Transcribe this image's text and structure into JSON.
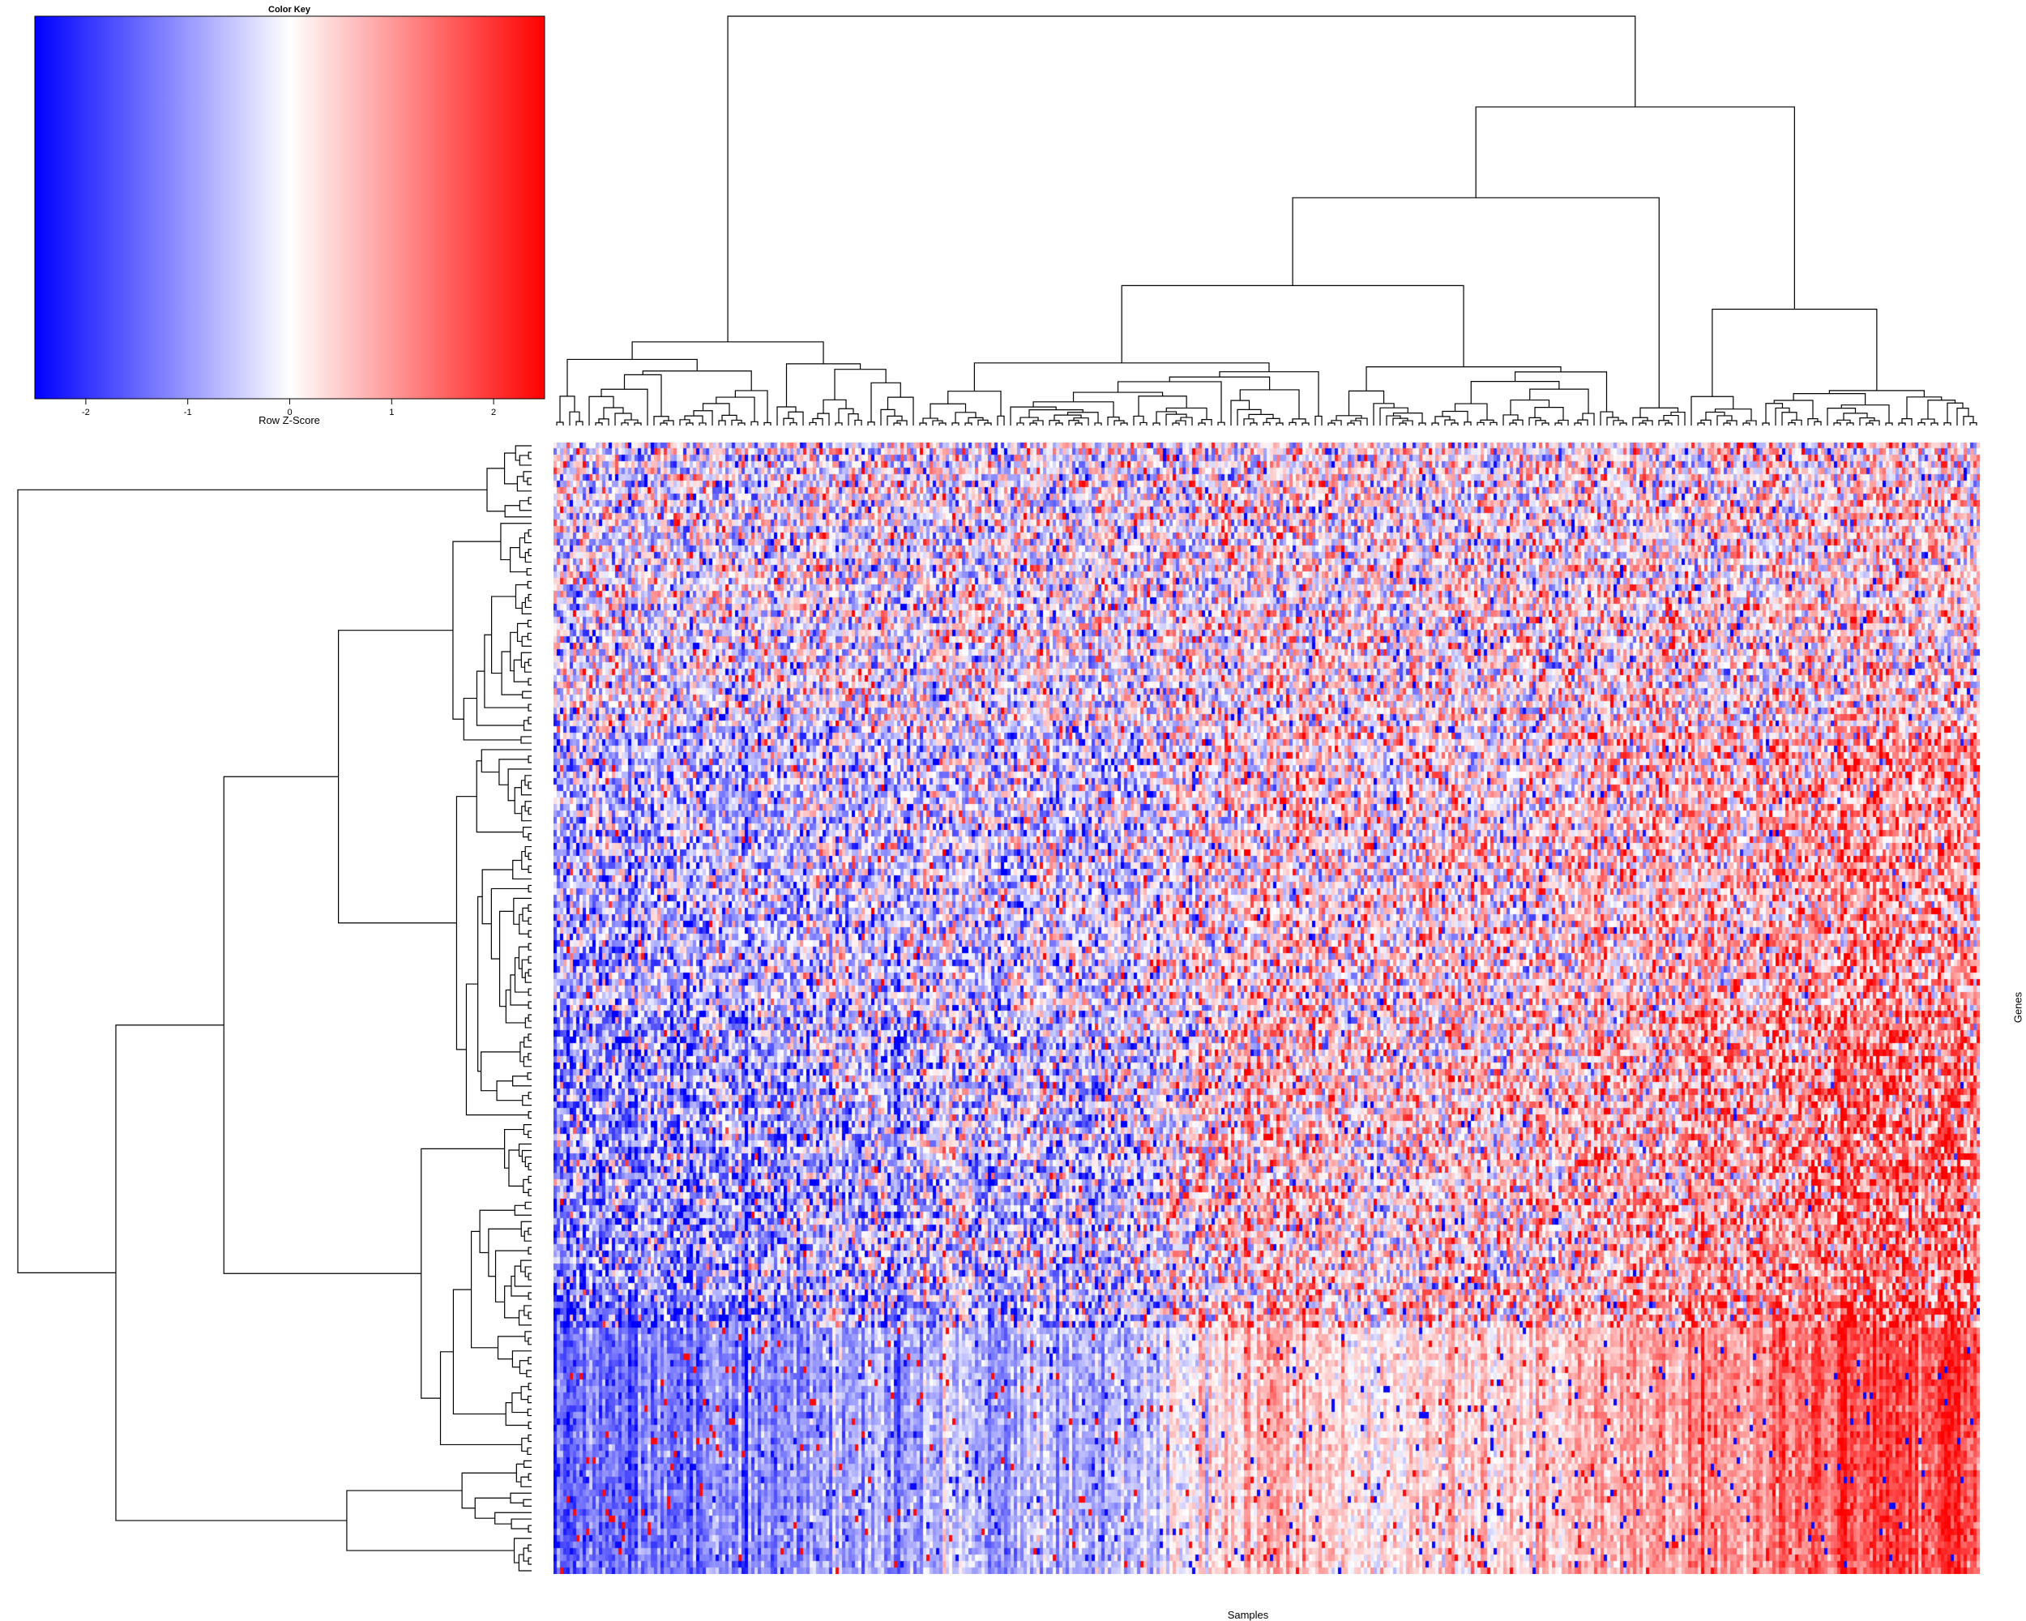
{
  "chart_data": {
    "type": "heatmap",
    "title": "",
    "xlabel": "Samples",
    "ylabel": "Genes",
    "color_key": {
      "title": "Color Key",
      "label": "Row Z-Score",
      "ticks": [
        -2,
        -1,
        0,
        1,
        2
      ],
      "range": [
        -2.5,
        2.5
      ],
      "colors": [
        "#0000ff",
        "#ffffff",
        "#ff0000"
      ]
    },
    "column_dendrogram": true,
    "row_dendrogram": true,
    "row_labels_shown": false,
    "column_labels_shown": false,
    "pattern": {
      "description_scale": "Row Z-Score"
    }
  }
}
